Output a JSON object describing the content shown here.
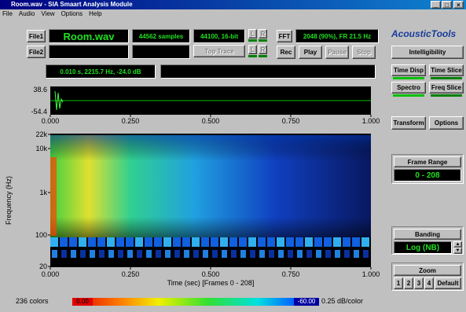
{
  "window": {
    "title": "Room.wav - SIA Smaart Analysis Module"
  },
  "menu": [
    "File",
    "Audio",
    "View",
    "Options",
    "Help"
  ],
  "controls": {
    "file1": "File1",
    "file1_name": "Room.wav",
    "samples": "44562 samples",
    "format": "44100, 16-bit",
    "l": "L",
    "r": "R",
    "fft": "FFT",
    "fft_info": "2048 (90%),  FR 21.5 Hz",
    "file2": "File2",
    "top_trace": "Top Trace",
    "rec": "Rec",
    "play": "Play",
    "pause": "Pause",
    "stop": "Stop",
    "cursor": "0.010 s, 2215.7 Hz, -24.0 dB"
  },
  "sidebar": {
    "logo": "AcousticTools",
    "intelligibility": "Intelligibility",
    "time_disp": "Time Disp",
    "time_slice": "Time Slice",
    "spectro": "Spectro",
    "freq_slice": "Freq Slice",
    "transform": "Transform",
    "options": "Options",
    "frame_range_label": "Frame Range",
    "frame_range": "0 - 208",
    "banding_label": "Banding",
    "banding": "Log (NB)",
    "zoom_label": "Zoom",
    "zoom_buttons": [
      "1",
      "2",
      "3",
      "4",
      "Default"
    ]
  },
  "waveform": {
    "y_labels": [
      "38.6",
      "-54.4"
    ],
    "x_labels": [
      "0.000",
      "0.250",
      "0.500",
      "0.750",
      "1.000"
    ]
  },
  "spectrogram": {
    "y_axis_title": "Frequency (Hz)",
    "y_labels": [
      "22k",
      "10k",
      "1k",
      "100",
      "20"
    ],
    "x_labels": [
      "0.000",
      "0.250",
      "0.500",
      "0.750",
      "1.000"
    ],
    "x_axis_title": "Time (sec)  [Frames 0 - 208]"
  },
  "color_scale": {
    "colors": "236 colors",
    "max": "0.00",
    "min": "-60.00",
    "resolution": "0.25 dB/color"
  }
}
